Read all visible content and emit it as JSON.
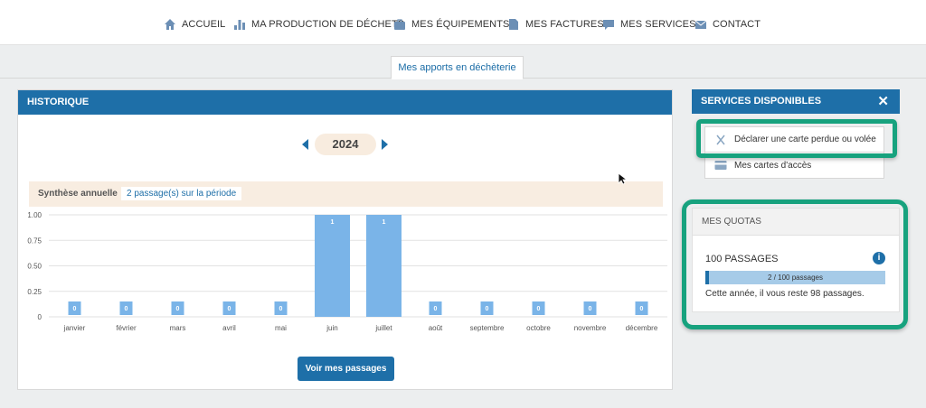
{
  "nav": [
    {
      "label": "ACCUEIL",
      "icon": "home-icon"
    },
    {
      "label": "MA PRODUCTION DE DÉCHETS",
      "icon": "bar-chart-icon"
    },
    {
      "label": "MES ÉQUIPEMENTS",
      "icon": "briefcase-icon"
    },
    {
      "label": "MES FACTURES",
      "icon": "document-icon"
    },
    {
      "label": "MES SERVICES",
      "icon": "chat-icon"
    },
    {
      "label": "CONTACT",
      "icon": "envelope-icon"
    }
  ],
  "tab": {
    "label": "Mes apports en déchèterie"
  },
  "historique": {
    "title": "HISTORIQUE",
    "year": "2024",
    "synth_label": "Synthèse annuelle",
    "synth_value": "2 passage(s) sur la période",
    "button": "Voir mes passages"
  },
  "chart_data": {
    "type": "bar",
    "categories": [
      "janvier",
      "février",
      "mars",
      "avril",
      "mai",
      "juin",
      "juillet",
      "août",
      "septembre",
      "octobre",
      "novembre",
      "décembre"
    ],
    "values": [
      0,
      0,
      0,
      0,
      0,
      1,
      1,
      0,
      0,
      0,
      0,
      0
    ],
    "data_labels": [
      "0",
      "0",
      "0",
      "0",
      "0",
      "1",
      "1",
      "0",
      "0",
      "0",
      "0",
      "0"
    ],
    "yticks": [
      "0",
      "0.25",
      "0.50",
      "0.75",
      "1.00"
    ],
    "ylim": [
      0,
      1
    ],
    "grid": true,
    "bar_color": "#7ab4e8"
  },
  "services": {
    "title": "SERVICES DISPONIBLES",
    "close": "✕",
    "items": [
      {
        "label": "Déclarer une carte perdue ou volée",
        "icon": "x-icon"
      },
      {
        "label": "Mes cartes d'accès",
        "icon": "card-icon"
      }
    ]
  },
  "quotas": {
    "title": "MES QUOTAS",
    "heading": "100 PASSAGES",
    "progress_text": "2 / 100 passages",
    "progress_ratio": 0.02,
    "note": "Cette année, il vous reste 98 passages."
  },
  "colors": {
    "primary": "#1e6fa8",
    "highlight": "#17a27e",
    "bar": "#7ab4e8"
  }
}
